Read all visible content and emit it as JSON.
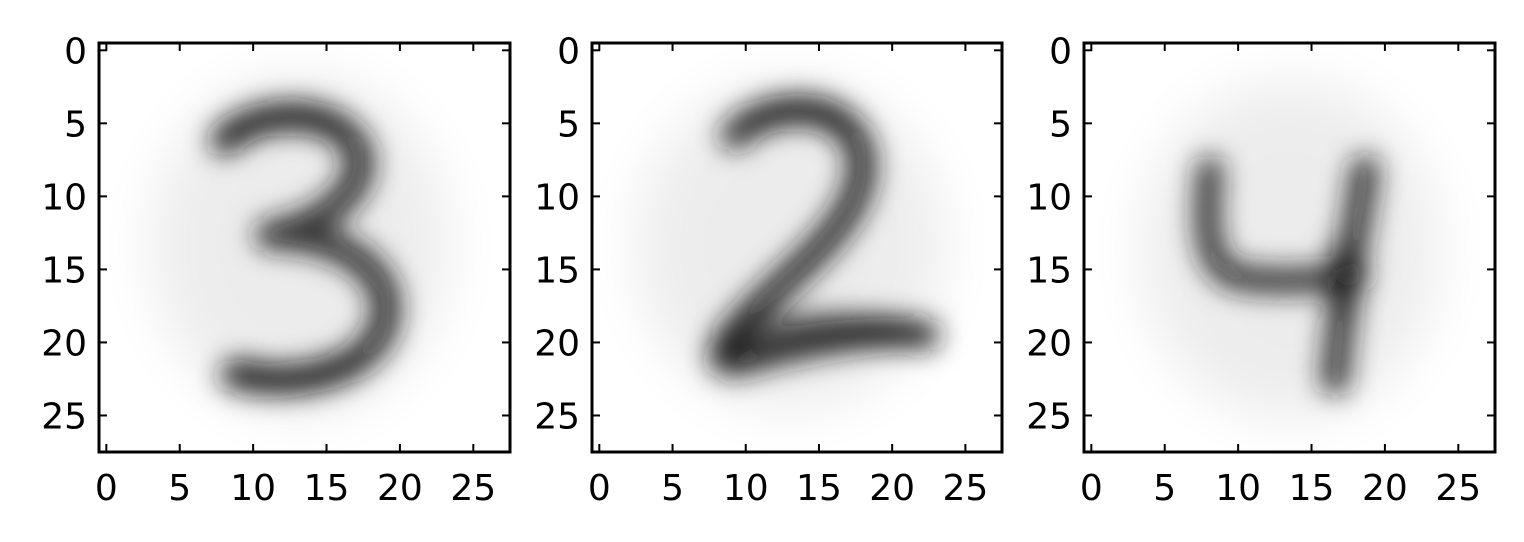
{
  "chart_data": [
    {
      "type": "heatmap",
      "title": "",
      "xlabel": "",
      "ylabel": "",
      "depicted_digit": "3",
      "colormap": "gray_r",
      "shape": [
        28,
        28
      ],
      "xlim": [
        -0.5,
        27.5
      ],
      "ylim": [
        27.5,
        -0.5
      ],
      "xticks": [
        0,
        5,
        10,
        15,
        20,
        25
      ],
      "yticks": [
        0,
        5,
        10,
        15,
        20,
        25
      ],
      "xtick_labels": [
        "0",
        "5",
        "10",
        "15",
        "20",
        "25"
      ],
      "ytick_labels": [
        "0",
        "5",
        "10",
        "15",
        "20",
        "25"
      ]
    },
    {
      "type": "heatmap",
      "title": "",
      "xlabel": "",
      "ylabel": "",
      "depicted_digit": "2",
      "colormap": "gray_r",
      "shape": [
        28,
        28
      ],
      "xlim": [
        -0.5,
        27.5
      ],
      "ylim": [
        27.5,
        -0.5
      ],
      "xticks": [
        0,
        5,
        10,
        15,
        20,
        25
      ],
      "yticks": [
        0,
        5,
        10,
        15,
        20,
        25
      ],
      "xtick_labels": [
        "0",
        "5",
        "10",
        "15",
        "20",
        "25"
      ],
      "ytick_labels": [
        "0",
        "5",
        "10",
        "15",
        "20",
        "25"
      ]
    },
    {
      "type": "heatmap",
      "title": "",
      "xlabel": "",
      "ylabel": "",
      "depicted_digit": "4",
      "colormap": "gray_r",
      "shape": [
        28,
        28
      ],
      "xlim": [
        -0.5,
        27.5
      ],
      "ylim": [
        27.5,
        -0.5
      ],
      "xticks": [
        0,
        5,
        10,
        15,
        20,
        25
      ],
      "yticks": [
        0,
        5,
        10,
        15,
        20,
        25
      ],
      "xtick_labels": [
        "0",
        "5",
        "10",
        "15",
        "20",
        "25"
      ],
      "ytick_labels": [
        "0",
        "5",
        "10",
        "15",
        "20",
        "25"
      ]
    }
  ]
}
